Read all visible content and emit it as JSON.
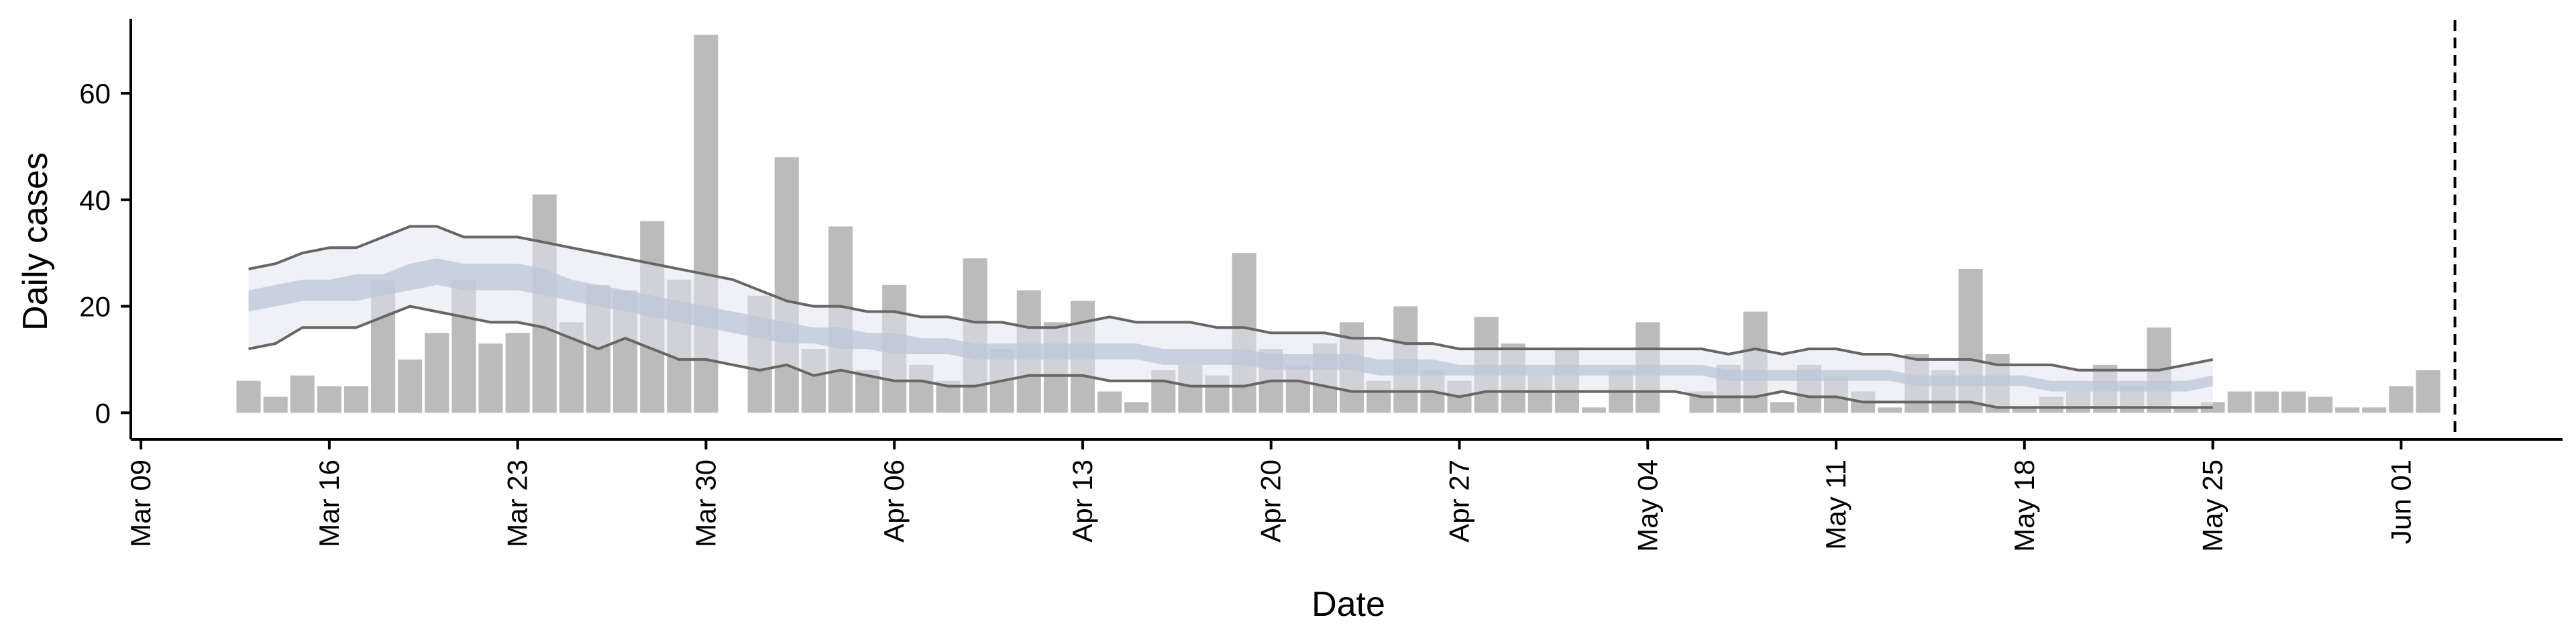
{
  "chart_data": {
    "type": "bar",
    "xlabel": "Date",
    "ylabel": "Daily cases",
    "ylim": [
      -5,
      75
    ],
    "y_ticks": [
      0,
      20,
      40,
      60
    ],
    "x_range": [
      "2020-03-08",
      "2020-06-07"
    ],
    "x_ticks": [
      {
        "date": "2020-03-09",
        "label": "Mar 09"
      },
      {
        "date": "2020-03-16",
        "label": "Mar 16"
      },
      {
        "date": "2020-03-23",
        "label": "Mar 23"
      },
      {
        "date": "2020-03-30",
        "label": "Mar 30"
      },
      {
        "date": "2020-04-06",
        "label": "Apr 06"
      },
      {
        "date": "2020-04-13",
        "label": "Apr 13"
      },
      {
        "date": "2020-04-20",
        "label": "Apr 20"
      },
      {
        "date": "2020-04-27",
        "label": "Apr 27"
      },
      {
        "date": "2020-05-04",
        "label": "May 04"
      },
      {
        "date": "2020-05-11",
        "label": "May 11"
      },
      {
        "date": "2020-05-18",
        "label": "May 18"
      },
      {
        "date": "2020-05-25",
        "label": "May 25"
      },
      {
        "date": "2020-06-01",
        "label": "Jun 01"
      }
    ],
    "bars": {
      "start_date": "2020-03-13",
      "color": "#bbbbbb",
      "values": [
        6,
        3,
        7,
        5,
        5,
        25,
        10,
        15,
        25,
        13,
        15,
        41,
        17,
        24,
        23,
        36,
        25,
        71,
        0,
        22,
        48,
        12,
        35,
        8,
        24,
        9,
        6,
        29,
        12,
        23,
        17,
        21,
        4,
        2,
        8,
        9,
        7,
        30,
        12,
        9,
        13,
        17,
        6,
        20,
        8,
        6,
        18,
        13,
        7,
        12,
        1,
        8,
        17,
        0,
        4,
        9,
        19,
        2,
        9,
        7,
        4,
        1,
        11,
        8,
        27,
        11,
        1,
        3,
        4,
        9,
        5,
        16,
        1,
        2,
        4,
        4,
        4,
        3,
        1,
        1,
        5,
        8
      ]
    },
    "bands": {
      "start_date": "2020-03-13",
      "line_color": "#666666",
      "outer_color": "#e4e6f0",
      "inner_color": "#bcc6da",
      "upper_90": [
        27,
        28,
        30,
        31,
        31,
        33,
        35,
        35,
        33,
        33,
        33,
        32,
        31,
        30,
        29,
        28,
        27,
        26,
        25,
        23,
        21,
        20,
        20,
        19,
        19,
        18,
        18,
        17,
        17,
        16,
        16,
        17,
        18,
        17,
        17,
        17,
        16,
        16,
        15,
        15,
        15,
        14,
        14,
        13,
        13,
        12,
        12,
        12,
        12,
        12,
        12,
        12,
        12,
        12,
        12,
        11,
        12,
        11,
        12,
        12,
        11,
        11,
        10,
        10,
        10,
        9,
        9,
        9,
        8,
        8,
        8,
        8,
        9,
        10
      ],
      "upper_50": [
        23,
        24,
        25,
        25,
        26,
        26,
        28,
        29,
        28,
        28,
        28,
        27,
        25,
        24,
        23,
        22,
        21,
        20,
        19,
        18,
        17,
        16,
        16,
        15,
        15,
        14,
        14,
        13,
        13,
        13,
        13,
        13,
        13,
        13,
        12,
        12,
        12,
        12,
        11,
        11,
        11,
        11,
        10,
        10,
        10,
        9,
        9,
        9,
        9,
        9,
        9,
        9,
        9,
        9,
        9,
        8,
        8,
        8,
        8,
        8,
        8,
        8,
        7,
        7,
        7,
        7,
        7,
        6,
        6,
        6,
        6,
        6,
        6,
        7
      ],
      "lower_50": [
        19,
        20,
        21,
        21,
        21,
        22,
        23,
        24,
        23,
        23,
        23,
        22,
        21,
        20,
        19,
        18,
        17,
        16,
        15,
        14,
        13,
        13,
        12,
        12,
        11,
        11,
        11,
        10,
        10,
        10,
        10,
        10,
        10,
        10,
        9,
        9,
        9,
        9,
        8,
        8,
        8,
        8,
        7,
        7,
        7,
        7,
        7,
        7,
        7,
        7,
        7,
        7,
        7,
        7,
        7,
        6,
        6,
        6,
        6,
        6,
        6,
        6,
        5,
        5,
        5,
        5,
        5,
        4,
        4,
        4,
        4,
        4,
        4,
        5
      ],
      "lower_90": [
        12,
        13,
        16,
        16,
        16,
        18,
        20,
        19,
        18,
        17,
        17,
        16,
        14,
        12,
        14,
        12,
        10,
        10,
        9,
        8,
        9,
        7,
        8,
        7,
        6,
        6,
        5,
        5,
        6,
        7,
        7,
        7,
        6,
        6,
        6,
        5,
        5,
        5,
        6,
        6,
        5,
        4,
        4,
        4,
        4,
        3,
        4,
        4,
        4,
        4,
        4,
        4,
        4,
        4,
        3,
        3,
        3,
        4,
        3,
        3,
        2,
        2,
        2,
        2,
        2,
        1,
        1,
        1,
        1,
        1,
        1,
        1,
        1,
        1
      ]
    },
    "vline": {
      "date": "2020-06-03",
      "style": "dashed",
      "color": "#000000"
    }
  }
}
